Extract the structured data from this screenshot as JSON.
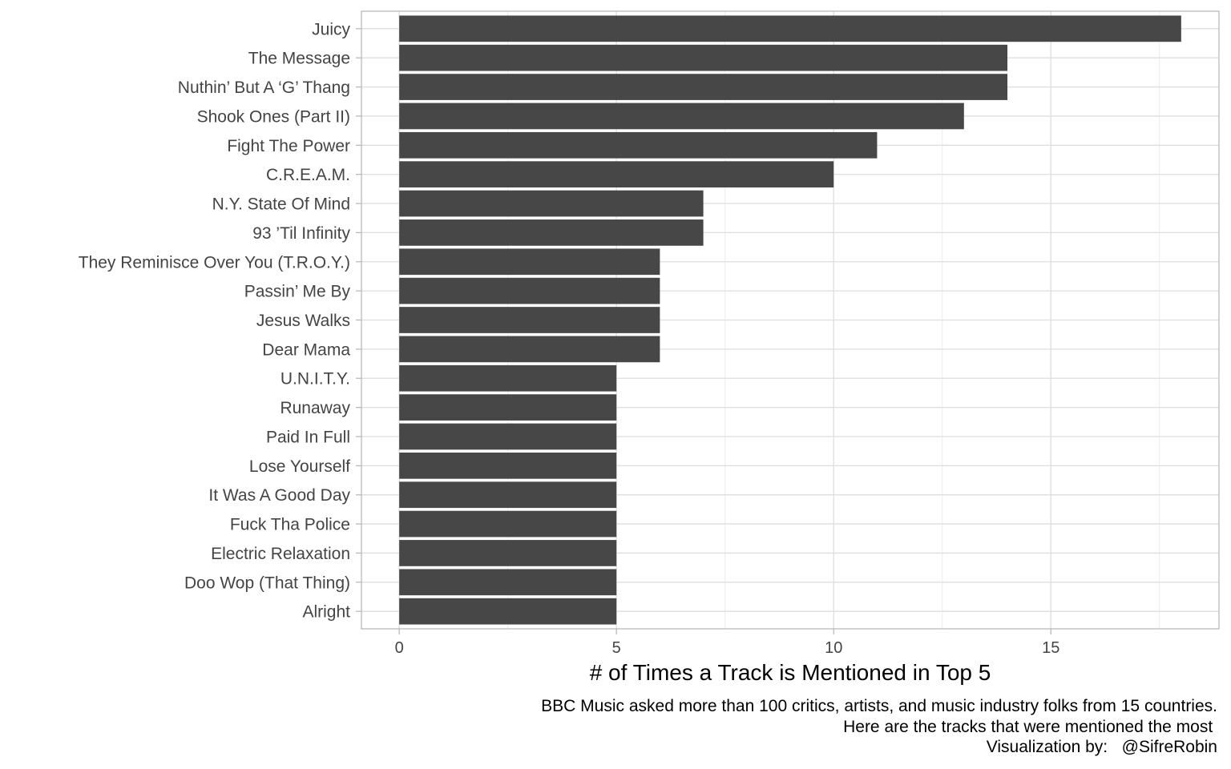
{
  "chart_data": {
    "type": "bar",
    "orientation": "horizontal",
    "categories": [
      "Juicy",
      "The Message",
      "Nuthin’ But A ‘G’ Thang",
      "Shook Ones (Part II)",
      "Fight The Power",
      "C.R.E.A.M.",
      "N.Y. State Of Mind",
      "93 ’Til Infinity",
      "They Reminisce Over You (T.R.O.Y.)",
      "Passin’ Me By",
      "Jesus Walks",
      "Dear Mama",
      "U.N.I.T.Y.",
      "Runaway",
      "Paid In Full",
      "Lose Yourself",
      "It Was A Good Day",
      "Fuck Tha Police",
      "Electric Relaxation",
      "Doo Wop (That Thing)",
      "Alright"
    ],
    "values": [
      18,
      14,
      14,
      13,
      11,
      10,
      7,
      7,
      6,
      6,
      6,
      6,
      5,
      5,
      5,
      5,
      5,
      5,
      5,
      5,
      5
    ],
    "xlabel": "# of Times a Track is Mentioned in Top 5",
    "ylabel": "",
    "xlim": [
      -0.87,
      18.87
    ],
    "x_ticks": [
      0,
      5,
      10,
      15
    ],
    "grid": true,
    "legend": "none",
    "bar_color": "#474747",
    "caption": [
      "BBC Music asked more than 100 critics, artists, and music industry folks from 15 countries.",
      "Here are the tracks that were mentioned the most ",
      "Visualization by:   @SifreRobin"
    ]
  }
}
